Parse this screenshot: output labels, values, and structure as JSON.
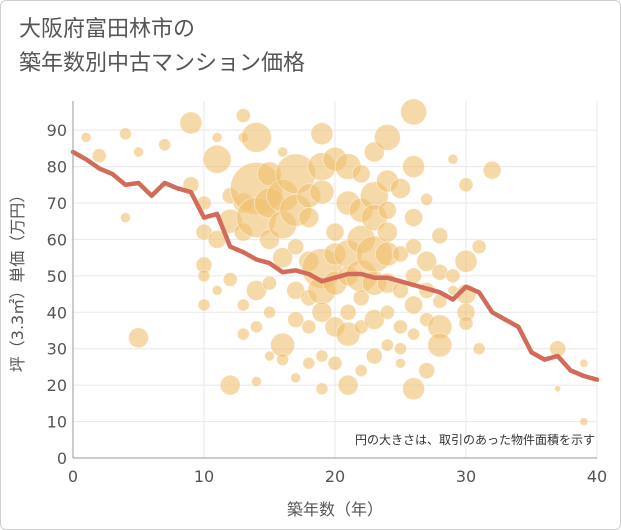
{
  "chart_data": {
    "type": "scatter",
    "title_lines": [
      "大阪府富田林市の",
      "築年数別中古マンション価格"
    ],
    "xlabel": "築年数（年）",
    "ylabel": "坪（3.3㎡）単価（万円）",
    "xlim": [
      0,
      40
    ],
    "ylim": [
      0,
      98
    ],
    "x_ticks": [
      0,
      10,
      20,
      30,
      40
    ],
    "y_ticks": [
      0,
      10,
      20,
      30,
      40,
      50,
      60,
      70,
      80,
      90
    ],
    "grid": true,
    "note": "円の大きさは、取引のあった物件面積を示す",
    "colors": {
      "bubble": "#f0c070",
      "line": "#d26b5a",
      "grid": "#e8e8e8",
      "axis": "#999999"
    },
    "series": [
      {
        "type": "bubble",
        "points": [
          [
            1,
            88,
            5
          ],
          [
            2,
            83,
            7
          ],
          [
            4,
            89,
            6
          ],
          [
            4,
            66,
            5
          ],
          [
            5,
            84,
            5
          ],
          [
            5,
            33,
            10
          ],
          [
            7,
            86,
            6
          ],
          [
            9,
            92,
            11
          ],
          [
            9,
            75,
            8
          ],
          [
            10,
            70,
            7
          ],
          [
            10,
            62,
            8
          ],
          [
            10,
            53,
            8
          ],
          [
            10,
            50,
            6
          ],
          [
            10,
            42,
            6
          ],
          [
            11,
            88,
            5
          ],
          [
            11,
            82,
            14
          ],
          [
            11,
            60,
            9
          ],
          [
            11,
            46,
            5
          ],
          [
            12,
            72,
            8
          ],
          [
            12,
            65,
            12
          ],
          [
            12,
            49,
            7
          ],
          [
            12,
            20,
            10
          ],
          [
            13,
            94,
            7
          ],
          [
            13,
            88,
            5
          ],
          [
            13,
            70,
            10
          ],
          [
            13,
            62,
            9
          ],
          [
            13,
            42,
            6
          ],
          [
            13,
            34,
            6
          ],
          [
            14,
            74,
            26
          ],
          [
            14,
            88,
            15
          ],
          [
            14,
            66,
            20
          ],
          [
            14,
            46,
            10
          ],
          [
            14,
            36,
            6
          ],
          [
            14,
            21,
            5
          ],
          [
            15,
            78,
            12
          ],
          [
            15,
            70,
            15
          ],
          [
            15,
            60,
            10
          ],
          [
            15,
            48,
            7
          ],
          [
            15,
            40,
            6
          ],
          [
            15,
            28,
            5
          ],
          [
            16,
            84,
            5
          ],
          [
            16,
            72,
            16
          ],
          [
            16,
            64,
            14
          ],
          [
            16,
            55,
            10
          ],
          [
            16,
            31,
            12
          ],
          [
            16,
            27,
            6
          ],
          [
            17,
            78,
            20
          ],
          [
            17,
            68,
            16
          ],
          [
            17,
            58,
            8
          ],
          [
            17,
            46,
            9
          ],
          [
            17,
            38,
            8
          ],
          [
            17,
            22,
            5
          ],
          [
            18,
            72,
            12
          ],
          [
            18,
            66,
            10
          ],
          [
            18,
            54,
            10
          ],
          [
            18,
            44,
            8
          ],
          [
            18,
            36,
            7
          ],
          [
            18,
            26,
            6
          ],
          [
            19,
            89,
            11
          ],
          [
            19,
            80,
            14
          ],
          [
            19,
            73,
            12
          ],
          [
            19,
            52,
            20
          ],
          [
            19,
            46,
            14
          ],
          [
            19,
            40,
            10
          ],
          [
            19,
            28,
            6
          ],
          [
            19,
            19,
            6
          ],
          [
            20,
            82,
            12
          ],
          [
            20,
            62,
            9
          ],
          [
            20,
            56,
            11
          ],
          [
            20,
            48,
            12
          ],
          [
            20,
            36,
            10
          ],
          [
            20,
            26,
            7
          ],
          [
            21,
            80,
            13
          ],
          [
            21,
            70,
            12
          ],
          [
            21,
            56,
            14
          ],
          [
            21,
            50,
            10
          ],
          [
            21,
            40,
            8
          ],
          [
            21,
            34,
            12
          ],
          [
            21,
            20,
            10
          ],
          [
            22,
            78,
            9
          ],
          [
            22,
            68,
            12
          ],
          [
            22,
            60,
            14
          ],
          [
            22,
            50,
            16
          ],
          [
            22,
            44,
            8
          ],
          [
            22,
            36,
            7
          ],
          [
            22,
            24,
            6
          ],
          [
            23,
            84,
            10
          ],
          [
            23,
            72,
            14
          ],
          [
            23,
            66,
            13
          ],
          [
            23,
            56,
            18
          ],
          [
            23,
            48,
            12
          ],
          [
            23,
            38,
            10
          ],
          [
            23,
            28,
            8
          ],
          [
            24,
            88,
            13
          ],
          [
            24,
            76,
            11
          ],
          [
            24,
            68,
            9
          ],
          [
            24,
            62,
            10
          ],
          [
            24,
            56,
            12
          ],
          [
            24,
            48,
            10
          ],
          [
            24,
            40,
            7
          ],
          [
            24,
            31,
            6
          ],
          [
            25,
            74,
            10
          ],
          [
            25,
            56,
            8
          ],
          [
            25,
            46,
            8
          ],
          [
            25,
            36,
            7
          ],
          [
            25,
            30,
            6
          ],
          [
            25,
            26,
            5
          ],
          [
            26,
            95,
            13
          ],
          [
            26,
            80,
            11
          ],
          [
            26,
            66,
            9
          ],
          [
            26,
            58,
            8
          ],
          [
            26,
            50,
            8
          ],
          [
            26,
            42,
            9
          ],
          [
            26,
            34,
            6
          ],
          [
            26,
            19,
            11
          ],
          [
            27,
            71,
            6
          ],
          [
            27,
            54,
            10
          ],
          [
            27,
            46,
            8
          ],
          [
            27,
            38,
            7
          ],
          [
            27,
            24,
            8
          ],
          [
            28,
            61,
            8
          ],
          [
            28,
            51,
            8
          ],
          [
            28,
            43,
            7
          ],
          [
            28,
            36,
            12
          ],
          [
            28,
            31,
            12
          ],
          [
            29,
            82,
            5
          ],
          [
            29,
            50,
            7
          ],
          [
            29,
            46,
            5
          ],
          [
            30,
            75,
            7
          ],
          [
            30,
            54,
            11
          ],
          [
            30,
            45,
            10
          ],
          [
            30,
            40,
            9
          ],
          [
            30,
            37,
            7
          ],
          [
            31,
            58,
            7
          ],
          [
            31,
            30,
            6
          ],
          [
            32,
            79,
            9
          ],
          [
            37,
            30,
            8
          ],
          [
            37,
            19,
            3
          ],
          [
            39,
            26,
            4
          ],
          [
            39,
            10,
            4
          ]
        ]
      },
      {
        "type": "line",
        "x": [
          0,
          1,
          2,
          3,
          4,
          5,
          6,
          7,
          8,
          9,
          10,
          11,
          12,
          13,
          14,
          15,
          16,
          17,
          18,
          19,
          20,
          21,
          22,
          23,
          24,
          25,
          26,
          27,
          28,
          29,
          30,
          31,
          32,
          33,
          34,
          35,
          36,
          37,
          38,
          39,
          40
        ],
        "y": [
          84,
          82,
          79.5,
          78,
          75,
          75.5,
          72,
          75.5,
          74,
          73,
          66,
          67,
          58,
          56.5,
          54.5,
          53.5,
          51,
          51.5,
          50.5,
          48.5,
          49.5,
          50.5,
          50.5,
          49.5,
          49.5,
          48.5,
          47.5,
          46.5,
          45.5,
          43.5,
          47,
          45.5,
          40,
          38,
          36,
          29,
          27,
          28,
          24,
          22.5,
          21.5
        ]
      }
    ]
  }
}
